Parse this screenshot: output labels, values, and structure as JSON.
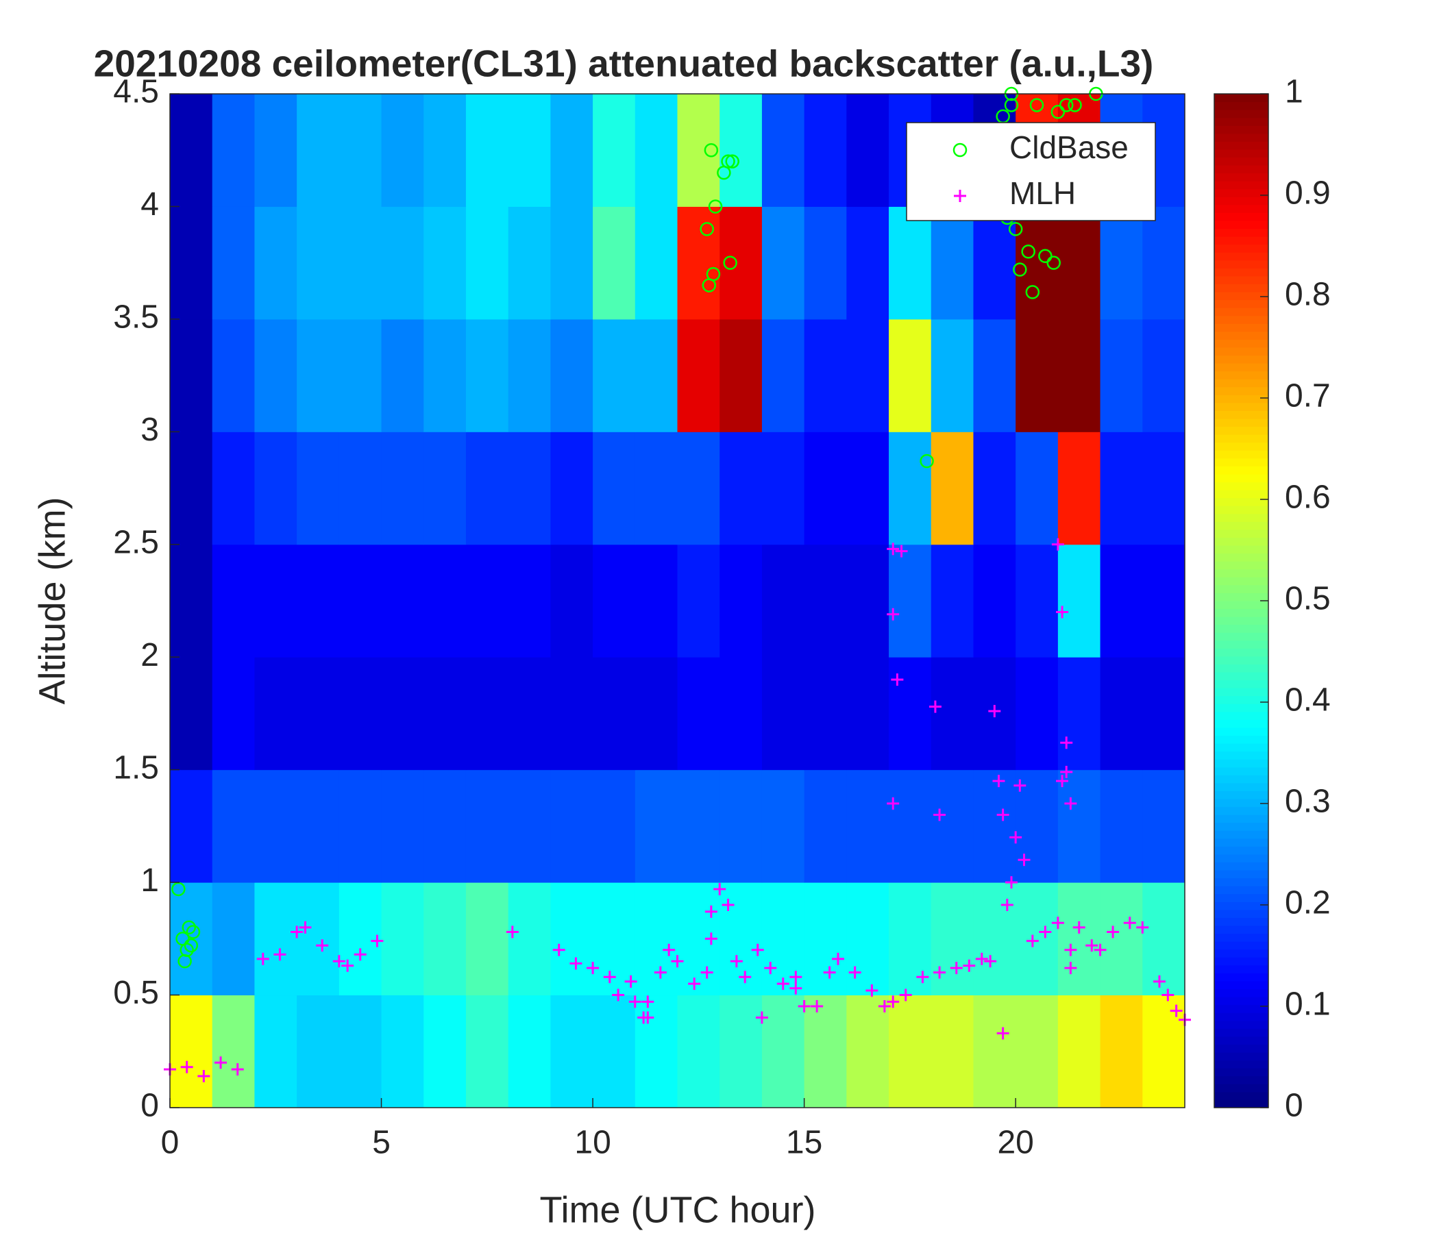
{
  "chart_data": {
    "type": "heatmap",
    "title": "20210208 ceilometer(CL31) attenuated backscatter (a.u.,L3)",
    "xlabel": "Time (UTC hour)",
    "ylabel": "Altitude (km)",
    "colormap": "jet",
    "xbins": [
      0,
      1,
      2,
      3,
      4,
      5,
      6,
      7,
      8,
      9,
      10,
      11,
      12,
      13,
      14,
      15,
      16,
      17,
      18,
      19,
      20,
      21,
      22,
      23,
      24
    ],
    "ybins": [
      0,
      0.5,
      1,
      1.5,
      2,
      2.5,
      3,
      3.5,
      4,
      4.5
    ],
    "values": [
      [
        0.62,
        0.5,
        0.35,
        0.33,
        0.33,
        0.35,
        0.38,
        0.42,
        0.38,
        0.35,
        0.35,
        0.38,
        0.4,
        0.42,
        0.45,
        0.5,
        0.55,
        0.58,
        0.58,
        0.55,
        0.55,
        0.6,
        0.66,
        0.62
      ],
      [
        0.3,
        0.28,
        0.35,
        0.35,
        0.38,
        0.4,
        0.42,
        0.45,
        0.4,
        0.38,
        0.38,
        0.38,
        0.38,
        0.38,
        0.38,
        0.38,
        0.38,
        0.4,
        0.42,
        0.42,
        0.42,
        0.45,
        0.45,
        0.42
      ],
      [
        0.15,
        0.2,
        0.2,
        0.2,
        0.2,
        0.2,
        0.2,
        0.2,
        0.2,
        0.2,
        0.2,
        0.22,
        0.22,
        0.22,
        0.22,
        0.2,
        0.2,
        0.2,
        0.2,
        0.2,
        0.2,
        0.22,
        0.2,
        0.2
      ],
      [
        0.05,
        0.12,
        0.1,
        0.1,
        0.1,
        0.1,
        0.1,
        0.1,
        0.1,
        0.1,
        0.1,
        0.1,
        0.12,
        0.12,
        0.1,
        0.1,
        0.1,
        0.12,
        0.1,
        0.1,
        0.12,
        0.15,
        0.1,
        0.1
      ],
      [
        0.05,
        0.12,
        0.12,
        0.12,
        0.12,
        0.12,
        0.12,
        0.12,
        0.12,
        0.1,
        0.12,
        0.12,
        0.15,
        0.12,
        0.1,
        0.1,
        0.1,
        0.22,
        0.15,
        0.12,
        0.15,
        0.35,
        0.12,
        0.12
      ],
      [
        0.05,
        0.15,
        0.18,
        0.2,
        0.2,
        0.2,
        0.2,
        0.18,
        0.18,
        0.15,
        0.2,
        0.2,
        0.2,
        0.15,
        0.15,
        0.12,
        0.12,
        0.3,
        0.7,
        0.15,
        0.2,
        0.85,
        0.15,
        0.15
      ],
      [
        0.05,
        0.2,
        0.25,
        0.28,
        0.28,
        0.25,
        0.28,
        0.3,
        0.28,
        0.25,
        0.3,
        0.3,
        0.9,
        0.95,
        0.2,
        0.15,
        0.15,
        0.6,
        0.3,
        0.2,
        1,
        1,
        0.2,
        0.18
      ],
      [
        0.05,
        0.22,
        0.28,
        0.3,
        0.3,
        0.3,
        0.32,
        0.35,
        0.32,
        0.3,
        0.45,
        0.35,
        0.85,
        0.9,
        0.25,
        0.2,
        0.15,
        0.35,
        0.25,
        0.15,
        1,
        1,
        0.22,
        0.2
      ],
      [
        0.05,
        0.22,
        0.25,
        0.3,
        0.3,
        0.28,
        0.3,
        0.35,
        0.35,
        0.3,
        0.4,
        0.35,
        0.55,
        0.4,
        0.2,
        0.15,
        0.1,
        0.15,
        0.1,
        0.05,
        0.85,
        0.9,
        0.2,
        0.18
      ]
    ],
    "clim": [
      0,
      1
    ],
    "cticks": [
      0,
      0.1,
      0.2,
      0.3,
      0.4,
      0.5,
      0.6,
      0.7,
      0.8,
      0.9,
      1
    ],
    "xlim": [
      0,
      24
    ],
    "xticks": [
      0,
      5,
      10,
      15,
      20
    ],
    "ylim": [
      0,
      4.5
    ],
    "yticks": [
      0,
      0.5,
      1,
      1.5,
      2,
      2.5,
      3,
      3.5,
      4,
      4.5
    ],
    "legend": "upper right",
    "series": [
      {
        "name": "CldBase",
        "marker": "circle",
        "color": "#00ff00",
        "x": [
          0.2,
          0.3,
          0.4,
          0.45,
          0.5,
          0.55,
          0.35,
          12.7,
          12.75,
          12.8,
          12.85,
          12.9,
          13.1,
          13.2,
          13.25,
          13.3,
          17.9,
          19.7,
          19.9,
          20.0,
          20.1,
          20.3,
          20.5,
          20.7,
          20.9,
          21.0,
          20.4,
          19.8,
          19.9,
          21.2,
          21.4,
          21.9
        ],
        "y": [
          0.97,
          0.75,
          0.7,
          0.8,
          0.72,
          0.78,
          0.65,
          3.9,
          3.65,
          4.25,
          3.7,
          4.0,
          4.15,
          4.2,
          3.75,
          4.2,
          2.87,
          4.4,
          4.45,
          3.9,
          3.72,
          3.8,
          4.45,
          3.78,
          3.75,
          4.42,
          3.62,
          3.95,
          4.5,
          4.45,
          4.45,
          4.5
        ]
      },
      {
        "name": "MLH",
        "marker": "plus",
        "color": "#ff00ff",
        "x": [
          0,
          0.4,
          0.8,
          1.2,
          1.6,
          2.2,
          2.6,
          3.0,
          3.2,
          3.6,
          4.0,
          4.2,
          4.5,
          4.9,
          8.1,
          9.2,
          9.6,
          10.0,
          10.4,
          10.6,
          10.9,
          11.2,
          11.3,
          11.6,
          11.8,
          12.0,
          12.4,
          12.7,
          12.8,
          13.0,
          13.2,
          13.4,
          13.6,
          13.9,
          14.2,
          14.5,
          14.8,
          15.0,
          15.3,
          15.6,
          15.8,
          16.2,
          16.6,
          16.9,
          17.1,
          17.1,
          17.3,
          17.1,
          17.2,
          17.1,
          17.4,
          17.8,
          18.2,
          18.6,
          18.9,
          19.2,
          19.4,
          18.1,
          18.2,
          19.5,
          19.6,
          19.7,
          19.8,
          19.9,
          20.0,
          20.1,
          20.2,
          19.7,
          20.4,
          20.7,
          21.0,
          21.3,
          21.5,
          21.8,
          22.0,
          22.3,
          22.7,
          23.0,
          23.4,
          23.6,
          23.8,
          24.0,
          21.0,
          21.1,
          21.2,
          21.2,
          21.3,
          21.1,
          21.3,
          11.3,
          11.0,
          12.8,
          14.0,
          14.8
        ],
        "y": [
          0.17,
          0.18,
          0.14,
          0.2,
          0.17,
          0.66,
          0.68,
          0.78,
          0.8,
          0.72,
          0.65,
          0.63,
          0.68,
          0.74,
          0.78,
          0.7,
          0.64,
          0.62,
          0.58,
          0.5,
          0.56,
          0.4,
          0.4,
          0.6,
          0.7,
          0.65,
          0.55,
          0.6,
          0.87,
          0.97,
          0.9,
          0.65,
          0.58,
          0.7,
          0.62,
          0.55,
          0.58,
          0.45,
          0.45,
          0.6,
          0.66,
          0.6,
          0.52,
          0.45,
          0.47,
          2.48,
          2.47,
          2.19,
          1.9,
          1.35,
          0.5,
          0.58,
          0.6,
          0.62,
          0.63,
          0.66,
          0.65,
          1.78,
          1.3,
          1.76,
          1.45,
          1.3,
          0.9,
          1.0,
          1.2,
          1.43,
          1.1,
          0.33,
          0.74,
          0.78,
          0.82,
          0.7,
          0.8,
          0.72,
          0.7,
          0.78,
          0.82,
          0.8,
          0.56,
          0.5,
          0.43,
          0.39,
          2.5,
          2.2,
          1.62,
          1.49,
          1.35,
          1.45,
          0.62,
          0.47,
          0.47,
          0.75,
          0.4,
          0.53
        ]
      }
    ]
  }
}
